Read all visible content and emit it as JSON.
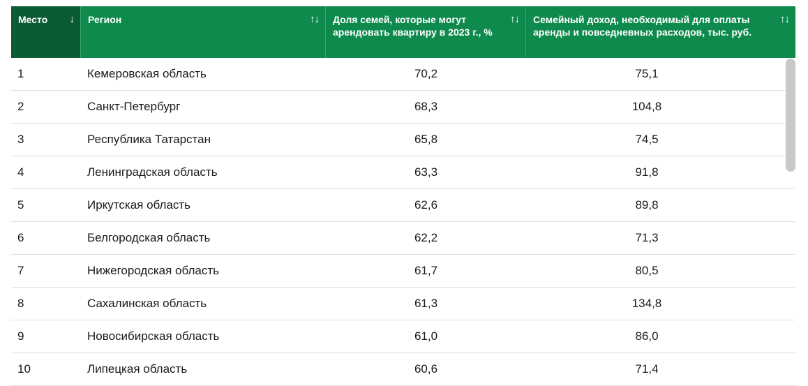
{
  "chart_data": {
    "type": "table",
    "columns": [
      {
        "label": "Место",
        "sort_icon": "↓"
      },
      {
        "label": "Регион",
        "sort_icon": "↑↓"
      },
      {
        "label": "Доля семей, которые могут арендовать квартиру в 2023 г., %",
        "sort_icon": "↑↓"
      },
      {
        "label": "Семейный доход, необходимый для оплаты аренды и повседневных расходов, тыс. руб.",
        "sort_icon": "↑↓"
      }
    ],
    "rows": [
      [
        "1",
        "Кемеровская область",
        "70,2",
        "75,1"
      ],
      [
        "2",
        "Санкт-Петербург",
        "68,3",
        "104,8"
      ],
      [
        "3",
        "Республика Татарстан",
        "65,8",
        "74,5"
      ],
      [
        "4",
        "Ленинградская область",
        "63,3",
        "91,8"
      ],
      [
        "5",
        "Иркутская область",
        "62,6",
        "89,8"
      ],
      [
        "6",
        "Белгородская область",
        "62,2",
        "71,3"
      ],
      [
        "7",
        "Нижегородская область",
        "61,7",
        "80,5"
      ],
      [
        "8",
        "Сахалинская область",
        "61,3",
        "134,8"
      ],
      [
        "9",
        "Новосибирская область",
        "61,0",
        "86,0"
      ],
      [
        "10",
        "Липецкая область",
        "60,6",
        "71,4"
      ]
    ]
  },
  "colors": {
    "header_bg": "#0d8a4c",
    "header_active_bg": "#0a5c35",
    "row_divider": "#e0e0e0",
    "scrollbar": "#c8c8c8"
  }
}
